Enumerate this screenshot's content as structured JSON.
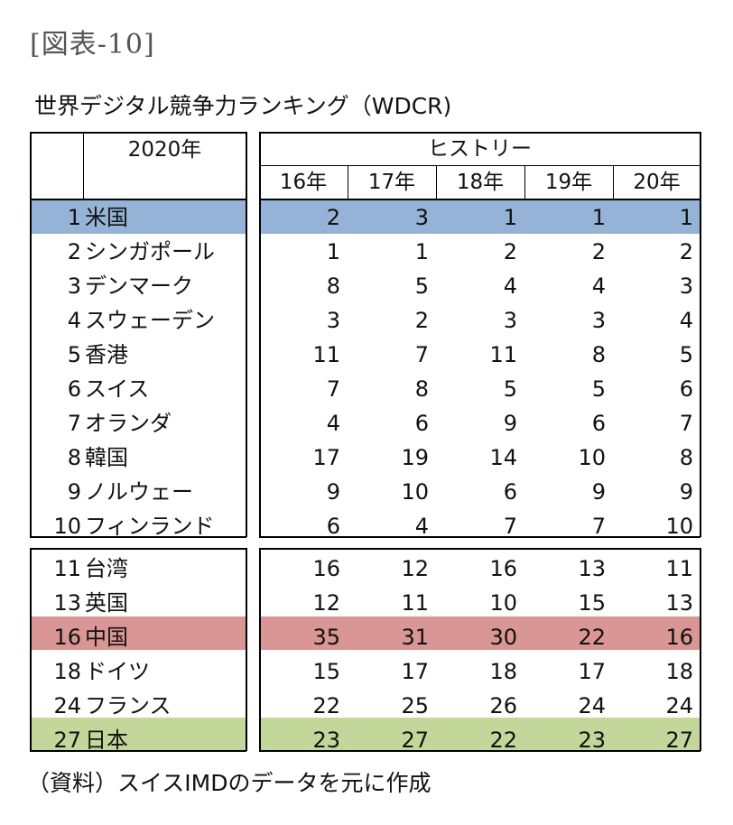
{
  "figure_label": "[図表-10]",
  "title": "世界デジタル競争力ランキング（WDCR)",
  "source": "（資料）スイスIMDのデータを元に作成",
  "colors": {
    "us_highlight": "#95b3d7",
    "china_highlight": "#da9694",
    "japan_highlight": "#c4d79b"
  },
  "chart_data": {
    "type": "table",
    "header": {
      "rank_group": "2020年",
      "history_group": "ヒストリー",
      "years": [
        "16年",
        "17年",
        "18年",
        "19年",
        "20年"
      ]
    },
    "top_group": [
      {
        "rank": "1",
        "country": "米国",
        "history": [
          "2",
          "3",
          "1",
          "1",
          "1"
        ]
      },
      {
        "rank": "2",
        "country": "シンガポール",
        "history": [
          "1",
          "1",
          "2",
          "2",
          "2"
        ]
      },
      {
        "rank": "3",
        "country": "デンマーク",
        "history": [
          "8",
          "5",
          "4",
          "4",
          "3"
        ]
      },
      {
        "rank": "4",
        "country": "スウェーデン",
        "history": [
          "3",
          "2",
          "3",
          "3",
          "4"
        ]
      },
      {
        "rank": "5",
        "country": "香港",
        "history": [
          "11",
          "7",
          "11",
          "8",
          "5"
        ]
      },
      {
        "rank": "6",
        "country": "スイス",
        "history": [
          "7",
          "8",
          "5",
          "5",
          "6"
        ]
      },
      {
        "rank": "7",
        "country": "オランダ",
        "history": [
          "4",
          "6",
          "9",
          "6",
          "7"
        ]
      },
      {
        "rank": "8",
        "country": "韓国",
        "history": [
          "17",
          "19",
          "14",
          "10",
          "8"
        ]
      },
      {
        "rank": "9",
        "country": "ノルウェー",
        "history": [
          "9",
          "10",
          "6",
          "9",
          "9"
        ]
      },
      {
        "rank": "10",
        "country": "フィンランド",
        "history": [
          "6",
          "4",
          "7",
          "7",
          "10"
        ]
      }
    ],
    "other_group": [
      {
        "rank": "11",
        "country": "台湾",
        "history": [
          "16",
          "12",
          "16",
          "13",
          "11"
        ]
      },
      {
        "rank": "13",
        "country": "英国",
        "history": [
          "12",
          "11",
          "10",
          "15",
          "13"
        ]
      },
      {
        "rank": "16",
        "country": "中国",
        "history": [
          "35",
          "31",
          "30",
          "22",
          "16"
        ]
      },
      {
        "rank": "18",
        "country": "ドイツ",
        "history": [
          "15",
          "17",
          "18",
          "17",
          "18"
        ]
      },
      {
        "rank": "24",
        "country": "フランス",
        "history": [
          "22",
          "25",
          "26",
          "24",
          "24"
        ]
      },
      {
        "rank": "27",
        "country": "日本",
        "history": [
          "23",
          "27",
          "22",
          "23",
          "27"
        ]
      }
    ]
  }
}
